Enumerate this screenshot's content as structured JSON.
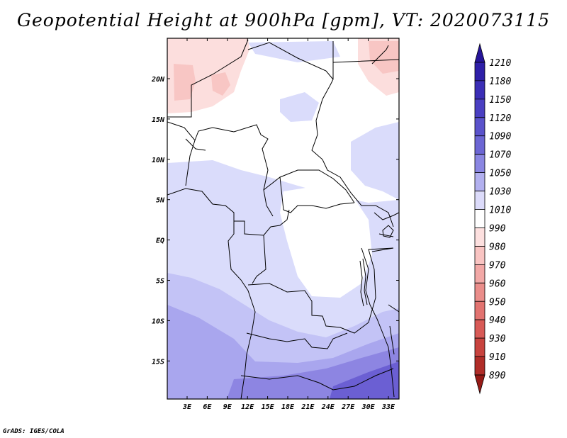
{
  "title": "Geopotential Height at 900hPa [gpm], VT: 2020073115",
  "credit": "GrADS: IGES/COLA",
  "map": {
    "lat_labels": [
      "20N",
      "15N",
      "10N",
      "5N",
      "EQ",
      "5S",
      "10S",
      "15S"
    ],
    "lon_labels": [
      "3E",
      "6E",
      "9E",
      "12E",
      "15E",
      "18E",
      "21E",
      "24E",
      "27E",
      "30E",
      "33E"
    ],
    "field_colors": {
      "light_lavender": "#dadcfb",
      "lavender": "#c3c3f6",
      "medium_purple": "#a9a6ee",
      "purple": "#8d85e2",
      "deep_purple": "#6b5fd3",
      "pink": "#fcdedd",
      "rose": "#f8c6c4"
    }
  },
  "colorbar": {
    "levels": [
      "1210",
      "1180",
      "1150",
      "1120",
      "1090",
      "1070",
      "1050",
      "1030",
      "1010",
      "990",
      "980",
      "970",
      "960",
      "950",
      "940",
      "930",
      "910",
      "890"
    ],
    "colors": [
      "#261599",
      "#2e1fa8",
      "#3b2eb6",
      "#4a3fc2",
      "#5a52cb",
      "#6c66d4",
      "#8a86e2",
      "#b2b0ef",
      "#dcdbfa",
      "#ffffff",
      "#fde0df",
      "#f9c4c2",
      "#f2a8a6",
      "#ea8d8a",
      "#e27370",
      "#d85a56",
      "#c8433e",
      "#b02d28",
      "#961a16"
    ]
  }
}
